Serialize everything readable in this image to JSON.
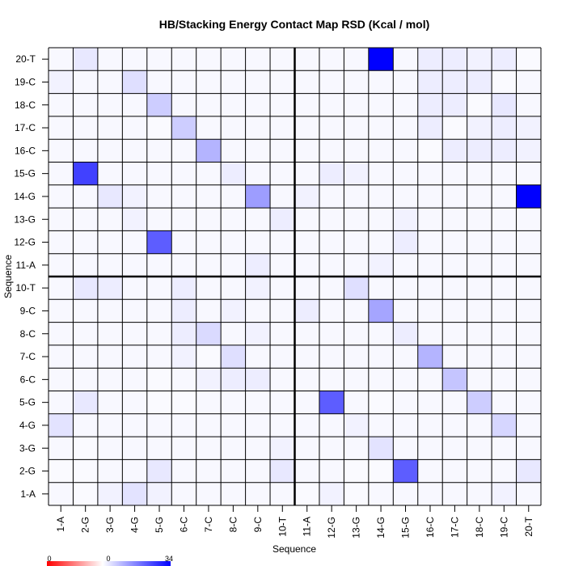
{
  "chart_data": {
    "type": "heatmap",
    "title": "HB/Stacking Energy Contact Map RSD (Kcal / mol)",
    "xlabel": "Sequence",
    "ylabel": "Sequence",
    "x_categories": [
      "1-A",
      "2-G",
      "3-G",
      "4-G",
      "5-G",
      "6-C",
      "7-C",
      "8-C",
      "9-C",
      "10-T",
      "11-A",
      "12-G",
      "13-G",
      "14-G",
      "15-G",
      "16-C",
      "17-C",
      "18-C",
      "19-C",
      "20-T"
    ],
    "y_categories": [
      "1-A",
      "2-G",
      "3-G",
      "4-G",
      "5-G",
      "6-C",
      "7-C",
      "8-C",
      "9-C",
      "10-T",
      "11-A",
      "12-G",
      "13-G",
      "14-G",
      "15-G",
      "16-C",
      "17-C",
      "18-C",
      "19-C",
      "20-T"
    ],
    "divider_after_index": 10,
    "color_scale": {
      "min": 0,
      "mid": 0,
      "max": 34,
      "min_label": "0",
      "mid_label": "0",
      "max_label": "34",
      "low_color": "#ff0000",
      "mid_color": "#ffffff",
      "high_color": "#0000ff"
    },
    "grid": true,
    "values": [
      [
        0.5,
        0.3,
        1,
        2.5,
        1,
        0.5,
        0.5,
        0.5,
        0.5,
        0.5,
        0.3,
        1,
        0.3,
        0.5,
        0.5,
        0.5,
        0.5,
        0.5,
        1,
        0.5
      ],
      [
        0.3,
        0.3,
        0.5,
        0.5,
        2,
        0.5,
        0.5,
        0.5,
        0.5,
        2,
        0.5,
        0.5,
        0.3,
        0.3,
        20,
        0.5,
        0.5,
        0.5,
        0.5,
        2
      ],
      [
        0.5,
        0.3,
        0.5,
        0.5,
        0.5,
        0.5,
        0.5,
        0.5,
        0.5,
        1,
        0.5,
        0.5,
        0.5,
        2.5,
        0.5,
        0.5,
        0.5,
        0.5,
        0.5,
        0.5
      ],
      [
        2.5,
        0.5,
        0.5,
        0.5,
        0.5,
        0.5,
        0.5,
        0.5,
        0.5,
        0.5,
        0.5,
        0.5,
        1,
        0.5,
        0.5,
        0.5,
        0.5,
        0.5,
        4,
        0.5
      ],
      [
        0.5,
        2,
        0.5,
        0.5,
        0.3,
        0.3,
        0.5,
        0.5,
        0.5,
        0.5,
        0.5,
        20,
        0.5,
        0.3,
        0.5,
        0.5,
        0.5,
        5,
        0.5,
        0.5
      ],
      [
        0.5,
        0.5,
        0.5,
        0.5,
        0.3,
        0.5,
        1,
        1.5,
        1.5,
        0.5,
        0.5,
        0.5,
        0.5,
        0.5,
        0.5,
        0.5,
        6,
        0.5,
        0.5,
        0.5
      ],
      [
        0.5,
        0.5,
        0.5,
        0.5,
        0.5,
        1,
        0.3,
        3,
        0.5,
        0.5,
        0.5,
        0.5,
        0.5,
        0.5,
        0.5,
        8,
        0.5,
        0.5,
        0.5,
        0.5
      ],
      [
        0.5,
        0.5,
        0.5,
        0.5,
        0.5,
        1.5,
        3.5,
        0.5,
        1,
        0.5,
        0.5,
        0.5,
        0.5,
        0.5,
        1.5,
        0.5,
        0.5,
        0.5,
        0.5,
        0.5
      ],
      [
        0.5,
        0.5,
        0.5,
        0.5,
        0.5,
        1.5,
        0.5,
        1,
        0.5,
        0.5,
        1.5,
        0.5,
        0.5,
        10,
        0.5,
        0.5,
        0.5,
        0.5,
        0.5,
        0.5
      ],
      [
        0.5,
        2,
        1.5,
        0.5,
        0.5,
        1.5,
        0.5,
        0.5,
        1,
        0.5,
        0.5,
        0.5,
        3,
        0.5,
        0.5,
        0.5,
        0.5,
        0.5,
        0.5,
        0.5
      ],
      [
        0.5,
        0.5,
        0.5,
        0.5,
        0.5,
        0.5,
        0.5,
        0.5,
        1.5,
        0.5,
        0.5,
        0.5,
        0.5,
        1,
        0.5,
        0.5,
        0.5,
        0.5,
        0.5,
        0.5
      ],
      [
        0.5,
        0.5,
        0.5,
        0.5,
        20,
        0.5,
        0.5,
        0.5,
        0.5,
        0.5,
        0.5,
        0.5,
        0.5,
        0.5,
        1.5,
        0.5,
        0.5,
        0.5,
        0.5,
        0.5
      ],
      [
        0.5,
        0.5,
        0.5,
        1,
        0.5,
        0.5,
        0.5,
        0.5,
        0.5,
        1.5,
        0.5,
        0.5,
        0.5,
        0.5,
        1,
        0.5,
        0.5,
        0.5,
        0.5,
        0.5
      ],
      [
        0.5,
        0.5,
        2,
        1,
        0.5,
        0.5,
        0.5,
        0.5,
        11,
        0.5,
        1,
        0.5,
        0.5,
        0.5,
        0.5,
        0.5,
        0.5,
        0.5,
        0.5,
        34
      ],
      [
        0.5,
        24,
        0.5,
        0.5,
        0.5,
        0.5,
        0.5,
        1.5,
        0.5,
        0.5,
        0.5,
        1.5,
        1,
        0.5,
        0.5,
        0.5,
        0.5,
        0.5,
        0.5,
        0.5
      ],
      [
        0.5,
        0.5,
        0.5,
        0.5,
        0.5,
        0.5,
        8,
        0.5,
        0.5,
        0.5,
        0.5,
        0.5,
        0.5,
        0.5,
        0.5,
        0.3,
        1.5,
        1.5,
        1.5,
        1
      ],
      [
        0.5,
        0.5,
        0.5,
        0.5,
        0.3,
        5,
        0.5,
        0.5,
        0.5,
        0.5,
        0.5,
        0.5,
        0.5,
        0.5,
        0.5,
        1.5,
        0.3,
        1,
        1.5,
        1
      ],
      [
        0.5,
        0.5,
        0.5,
        0.5,
        5,
        0.5,
        0.5,
        0.5,
        0.5,
        0.5,
        0.5,
        0.5,
        0.5,
        0.5,
        0.5,
        1.5,
        1.5,
        0.3,
        2,
        0.5
      ],
      [
        1,
        0.5,
        0.5,
        3,
        0.5,
        0.5,
        0.5,
        0.5,
        0.5,
        0.5,
        0.5,
        0.5,
        0.5,
        0.5,
        0.5,
        1.5,
        1.5,
        1.5,
        0.3,
        0.5
      ],
      [
        0.5,
        2,
        0.5,
        0.5,
        0.5,
        0.5,
        0.5,
        0.5,
        0.5,
        0.5,
        0.5,
        0.5,
        0.5,
        34,
        0.5,
        1.5,
        1.5,
        1,
        1.5,
        0.3
      ]
    ]
  }
}
